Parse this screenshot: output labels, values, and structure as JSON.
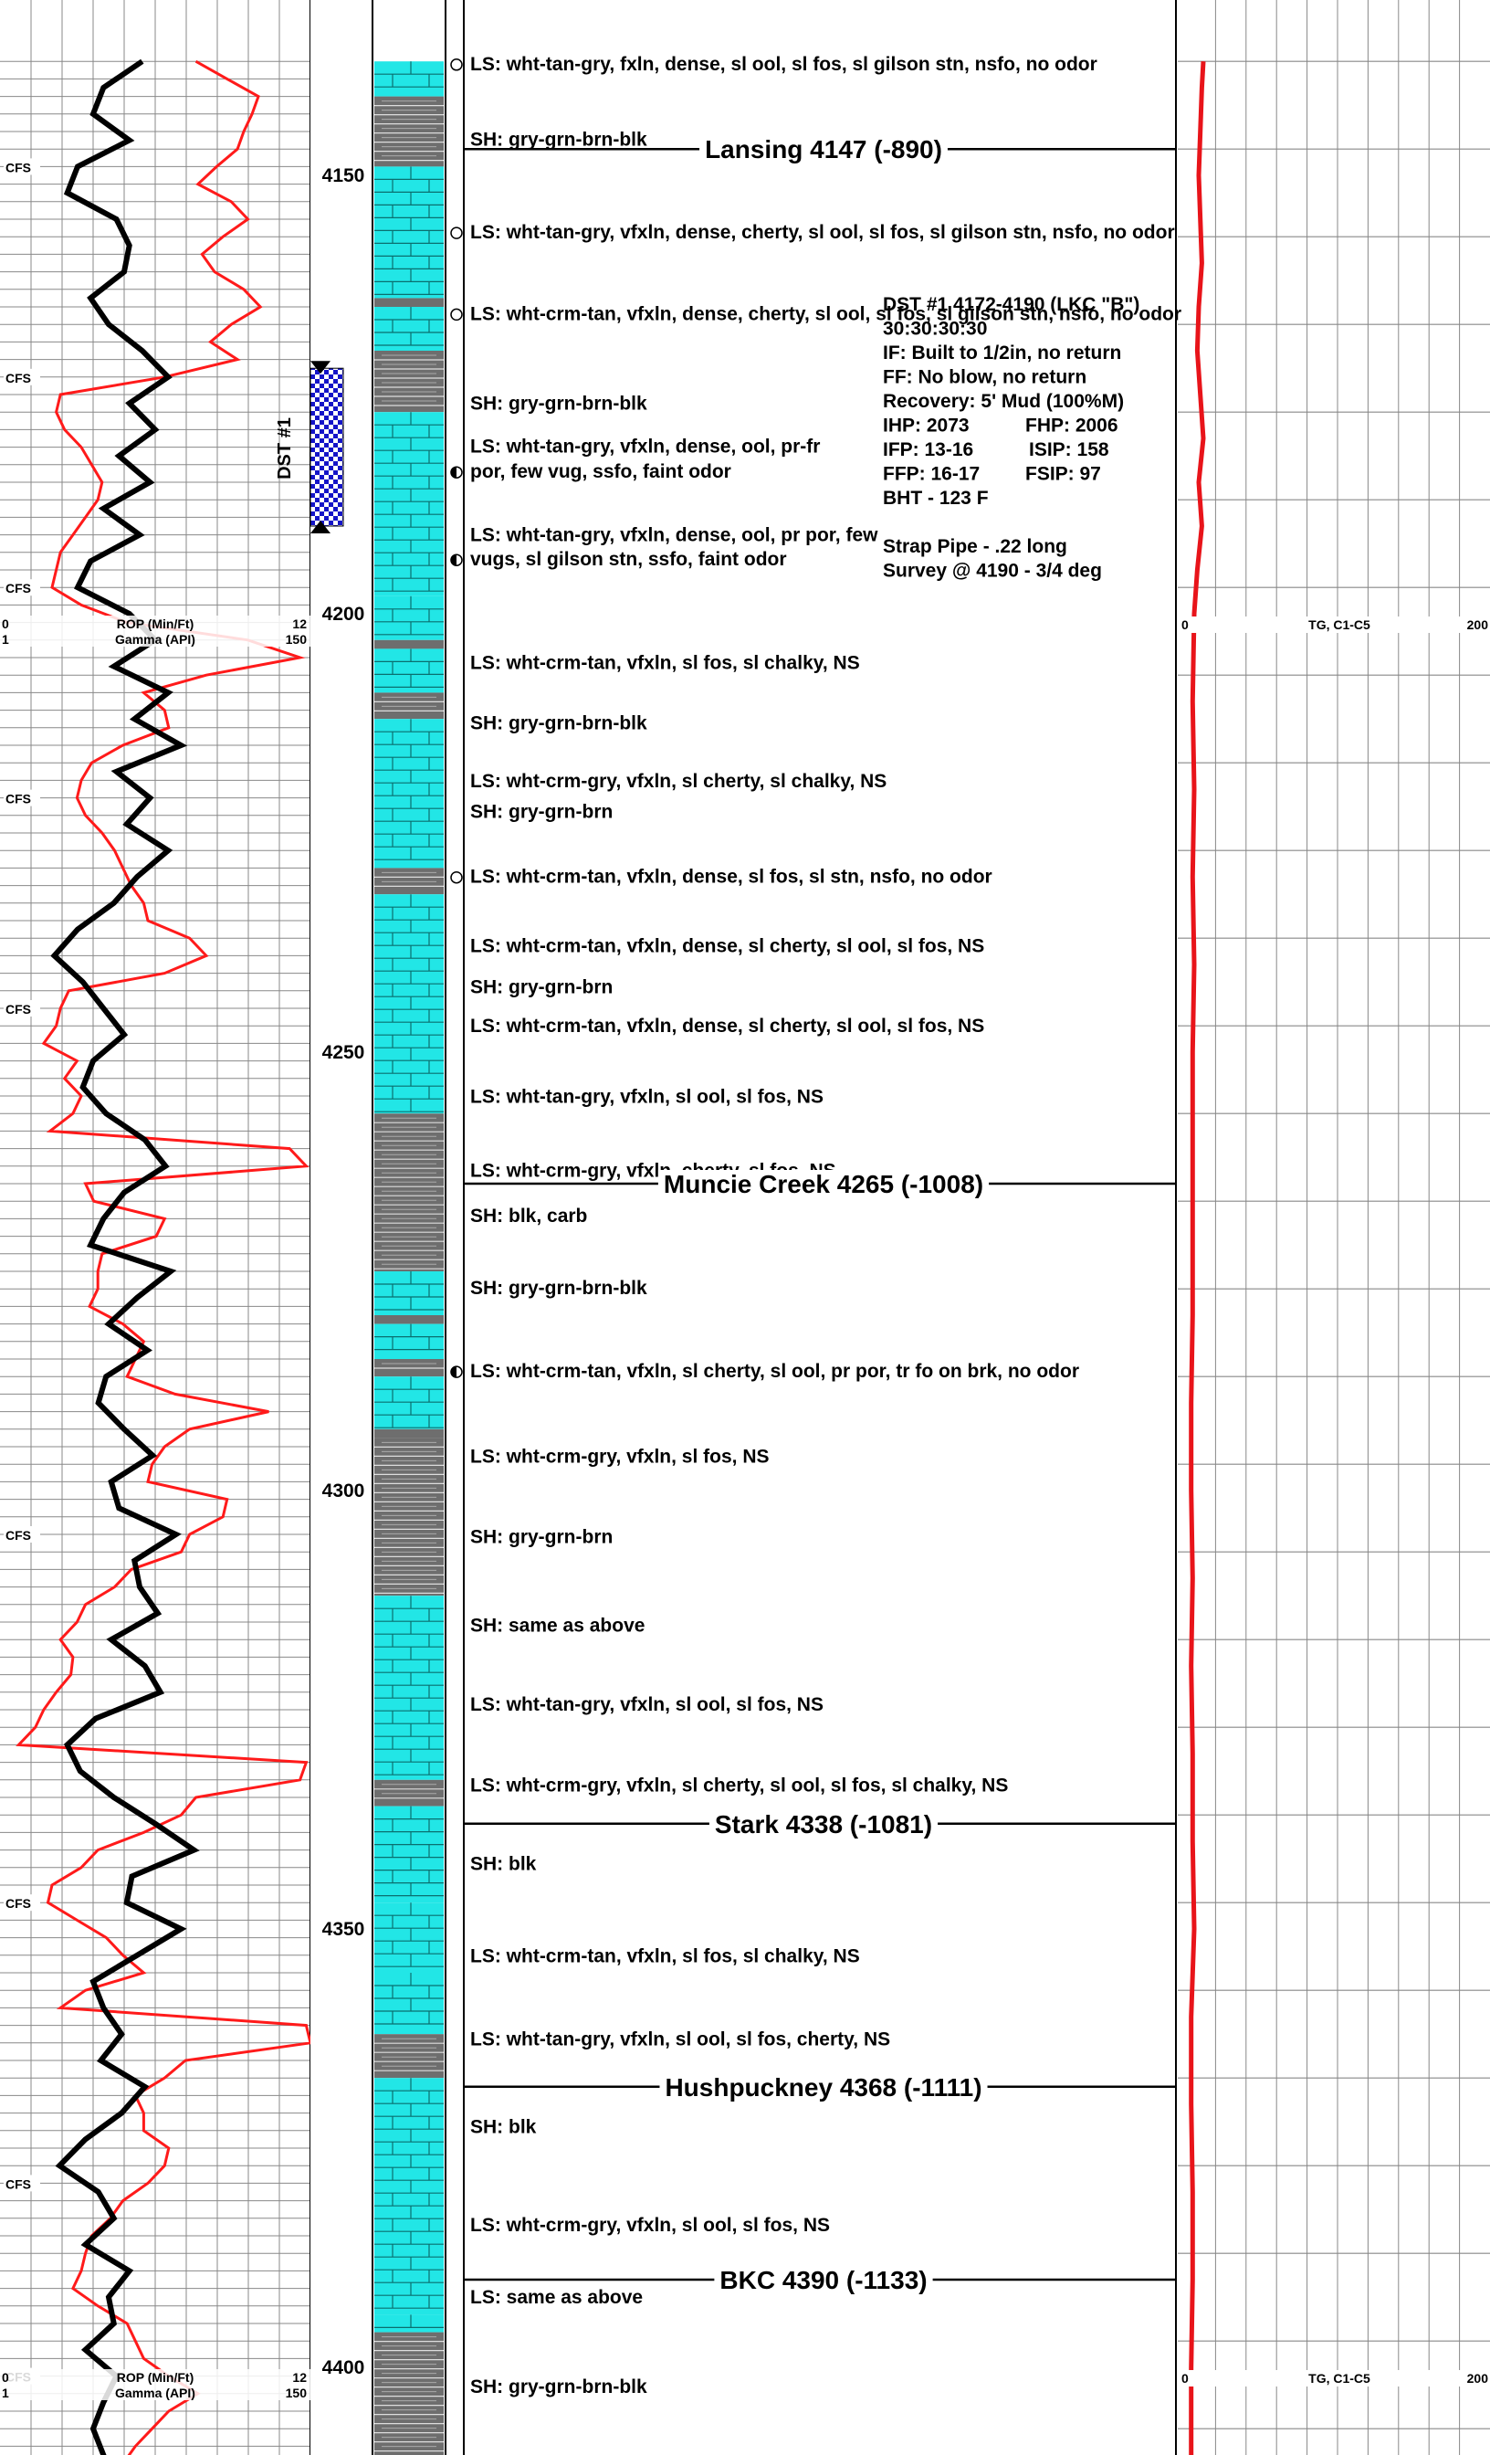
{
  "depth_range": [
    4137,
    4417
  ],
  "depth_labels": [
    "4150",
    "4200",
    "4250",
    "4300",
    "4350",
    "4400"
  ],
  "cfs_label": "CFS",
  "cfs_depths": [
    4149,
    4173,
    4197,
    4221,
    4245,
    4305,
    4347,
    4379,
    4401
  ],
  "track1_headers": [
    {
      "depth": 4200,
      "left_top": "0",
      "right_top": "12",
      "title_top": "ROP (Min/Ft)",
      "left_bot": "1",
      "right_bot": "150",
      "title_bot": "Gamma (API)"
    },
    {
      "depth": 4400,
      "left_top": "0",
      "right_top": "12",
      "title_top": "ROP (Min/Ft)",
      "left_bot": "1",
      "right_bot": "150",
      "title_bot": "Gamma (API)"
    }
  ],
  "track3_headers": [
    {
      "depth": 4200,
      "left": "0",
      "title": "TG, C1-C5",
      "right": "200"
    },
    {
      "depth": 4400,
      "left": "0",
      "title": "TG, C1-C5",
      "right": "200"
    }
  ],
  "dst": {
    "label": "DST #1",
    "top_depth": 4172,
    "bottom_depth": 4190
  },
  "colors": {
    "limestone": "#22e6e6",
    "shale": "#6e6e6e",
    "gamma": "#ff1a1a",
    "rop": "#000000",
    "gas": "#e8141a"
  },
  "lithology": [
    [
      4137,
      4141,
      "LS"
    ],
    [
      4141,
      4149,
      "SH"
    ],
    [
      4149,
      4164,
      "LS"
    ],
    [
      4164,
      4165,
      "SH"
    ],
    [
      4165,
      4170,
      "LS"
    ],
    [
      4170,
      4177,
      "SH"
    ],
    [
      4177,
      4198,
      "LS"
    ],
    [
      4198,
      4203,
      "LS"
    ],
    [
      4203,
      4204,
      "SH"
    ],
    [
      4204,
      4209,
      "LS"
    ],
    [
      4209,
      4212,
      "SH"
    ],
    [
      4212,
      4229,
      "LS"
    ],
    [
      4229,
      4232,
      "SH"
    ],
    [
      4232,
      4257,
      "LS"
    ],
    [
      4257,
      4275,
      "SH"
    ],
    [
      4275,
      4280,
      "LS"
    ],
    [
      4280,
      4281,
      "SH"
    ],
    [
      4281,
      4285,
      "LS"
    ],
    [
      4285,
      4287,
      "SH"
    ],
    [
      4287,
      4293,
      "LS"
    ],
    [
      4293,
      4294,
      "SH"
    ],
    [
      4294,
      4312,
      "SH"
    ],
    [
      4312,
      4333,
      "LS"
    ],
    [
      4333,
      4336,
      "SH"
    ],
    [
      4336,
      4347,
      "LS"
    ],
    [
      4347,
      4355,
      "LS"
    ],
    [
      4355,
      4362,
      "LS"
    ],
    [
      4362,
      4367,
      "SH"
    ],
    [
      4367,
      4394,
      "LS"
    ],
    [
      4394,
      4396,
      "LS"
    ],
    [
      4396,
      4417,
      "SH"
    ]
  ],
  "formations": [
    {
      "depth": 4147,
      "label": "Lansing 4147 (-890)"
    },
    {
      "depth": 4265,
      "label": "Muncie Creek 4265 (-1008)"
    },
    {
      "depth": 4338,
      "label": "Stark 4338 (-1081)"
    },
    {
      "depth": 4368,
      "label": "Hushpuckney 4368 (-1111)"
    },
    {
      "depth": 4390,
      "label": "BKC 4390 (-1133)"
    }
  ],
  "descriptions": [
    {
      "depth": 4138,
      "text": "LS: wht-tan-gry, fxln, dense, sl ool, sl fos, sl gilson stn, nsfo, no odor",
      "show": "empty"
    },
    {
      "depth": 4146.6,
      "text": "SH: gry-grn-brn-blk"
    },
    {
      "depth": 4157.2,
      "text": "LS: wht-tan-gry, vfxln, dense, cherty, sl ool, sl fos, sl gilson stn, nsfo, no odor",
      "show": "empty"
    },
    {
      "depth": 4166.5,
      "text": "LS: wht-crm-tan, vfxln, dense, cherty, sl ool, sl fos, sl gilson stn, nsfo, no odor",
      "show": "empty"
    },
    {
      "depth": 4176.7,
      "text": "SH: gry-grn-brn-blk"
    },
    {
      "depth": 4181.6,
      "text": "LS: wht-tan-gry, vfxln, dense, ool, pr-fr"
    },
    {
      "depth": 4184.5,
      "text": "por, few vug, ssfo, faint odor",
      "show": "half"
    },
    {
      "depth": 4191.7,
      "text": "LS: wht-tan-gry, vfxln, dense, ool, pr por, few"
    },
    {
      "depth": 4194.5,
      "text": "vugs, sl gilson stn, ssfo, faint odor",
      "show": "half"
    },
    {
      "depth": 4206.3,
      "text": "LS: wht-crm-tan, vfxln, sl fos, sl chalky, NS"
    },
    {
      "depth": 4213.2,
      "text": "SH: gry-grn-brn-blk"
    },
    {
      "depth": 4219.8,
      "text": "LS: wht-crm-gry, vfxln, sl cherty, sl chalky, NS"
    },
    {
      "depth": 4223.3,
      "text": "SH: gry-grn-brn"
    },
    {
      "depth": 4230.7,
      "text": "LS: wht-crm-tan, vfxln, dense, sl fos, sl stn, nsfo, no odor",
      "show": "empty"
    },
    {
      "depth": 4238.6,
      "text": "LS: wht-crm-tan, vfxln, dense, sl cherty, sl ool, sl fos, NS"
    },
    {
      "depth": 4243.3,
      "text": "SH: gry-grn-brn"
    },
    {
      "depth": 4247.7,
      "text": "LS: wht-crm-tan, vfxln, dense, sl cherty, sl ool, sl fos, NS"
    },
    {
      "depth": 4255.8,
      "text": "LS: wht-tan-gry, vfxln, sl ool, sl fos, NS"
    },
    {
      "depth": 4264.2,
      "text": "LS: wht-crm-gry, vfxln, cherty, sl fos, NS"
    },
    {
      "depth": 4269.4,
      "text": "SH: blk, carb"
    },
    {
      "depth": 4277.6,
      "text": "SH: gry-grn-brn-blk"
    },
    {
      "depth": 4287.1,
      "text": "LS: wht-crm-tan, vfxln, sl cherty, sl ool, pr por, tr fo on brk, no odor",
      "show": "half"
    },
    {
      "depth": 4296.8,
      "text": "LS: wht-crm-gry, vfxln, sl fos, NS"
    },
    {
      "depth": 4306.0,
      "text": "SH: gry-grn-brn"
    },
    {
      "depth": 4316.1,
      "text": "SH: same as above"
    },
    {
      "depth": 4325.1,
      "text": "LS: wht-tan-gry, vfxln, sl ool, sl fos, NS"
    },
    {
      "depth": 4334.3,
      "text": "LS: wht-crm-gry, vfxln, sl cherty, sl ool, sl fos, sl chalky, NS"
    },
    {
      "depth": 4343.3,
      "text": "SH: blk"
    },
    {
      "depth": 4353.8,
      "text": "LS: wht-crm-tan, vfxln, sl fos, sl chalky, NS"
    },
    {
      "depth": 4363.3,
      "text": "LS: wht-tan-gry, vfxln, sl ool, sl fos, cherty, NS"
    },
    {
      "depth": 4373.3,
      "text": "SH: blk"
    },
    {
      "depth": 4384.5,
      "text": "LS: wht-crm-gry, vfxln, sl ool, sl fos, NS"
    },
    {
      "depth": 4392.7,
      "text": "LS: same as above"
    },
    {
      "depth": 4402.9,
      "text": "SH: gry-grn-brn-blk"
    }
  ],
  "dst_box": [
    "DST #1 4172-4190 (LKC \"B\")",
    "30:30:30:30",
    "IF: Built to 1/2in, no return",
    "FF: No blow, no return",
    "Recovery: 5' Mud (100%M)",
    [
      "IHP: 2073",
      "FHP: 2006"
    ],
    [
      "IFP: 13-16",
      "ISIP: 158"
    ],
    [
      "FFP: 16-17",
      "FSIP: 97"
    ],
    "BHT - 123 F",
    "",
    "Strap Pipe - .22 long",
    "Survey @ 4190 - 3/4 deg"
  ],
  "chart_data": {
    "type": "line",
    "title": "",
    "y_axis": "depth (ft)",
    "ylim": [
      4137,
      4417
    ],
    "series": [
      {
        "name": "ROP (Min/Ft)",
        "xlim": [
          0,
          12
        ],
        "depths": [
          4137,
          4140,
          4143,
          4146,
          4149,
          4152,
          4155,
          4158,
          4161,
          4164,
          4167,
          4170,
          4173,
          4176,
          4179,
          4182,
          4185,
          4188,
          4191,
          4194,
          4197,
          4200,
          4203,
          4206,
          4209,
          4212,
          4215,
          4218,
          4221,
          4224,
          4227,
          4230,
          4233,
          4236,
          4239,
          4242,
          4245,
          4248,
          4251,
          4254,
          4257,
          4260,
          4263,
          4266,
          4269,
          4272,
          4275,
          4278,
          4281,
          4284,
          4287,
          4290,
          4293,
          4296,
          4299,
          4302,
          4305,
          4308,
          4311,
          4314,
          4317,
          4320,
          4323,
          4326,
          4329,
          4332,
          4335,
          4338,
          4341,
          4344,
          4347,
          4350,
          4353,
          4356,
          4359,
          4362,
          4365,
          4368,
          4371,
          4374,
          4377,
          4380,
          4383,
          4386,
          4389,
          4392,
          4395,
          4398,
          4401,
          4404,
          4407,
          4410,
          4413,
          4416
        ],
        "values": [
          5.5,
          4.0,
          3.6,
          5.0,
          3.0,
          2.6,
          4.5,
          5.0,
          4.8,
          3.5,
          4.2,
          5.5,
          6.5,
          5.0,
          6.0,
          4.6,
          5.8,
          4.0,
          5.4,
          3.5,
          3.0,
          5.0,
          6.0,
          4.4,
          6.5,
          5.2,
          7.0,
          4.5,
          5.8,
          4.9,
          6.5,
          5.3,
          4.4,
          3.0,
          2.1,
          3.2,
          4.0,
          4.8,
          3.6,
          3.2,
          4.1,
          5.6,
          6.4,
          4.8,
          4.0,
          3.5,
          6.6,
          5.3,
          4.2,
          5.7,
          4.1,
          3.8,
          4.8,
          5.9,
          4.3,
          4.6,
          6.8,
          5.2,
          5.4,
          6.1,
          4.3,
          5.6,
          6.2,
          3.7,
          2.6,
          3.1,
          4.4,
          6.0,
          7.5,
          5.1,
          4.9,
          7.0,
          5.3,
          3.6,
          4.0,
          4.7,
          3.9,
          5.6,
          4.7,
          3.3,
          2.3,
          3.8,
          4.4,
          3.3,
          5.0,
          4.2,
          4.4,
          3.3,
          4.5,
          4.0,
          3.6,
          4.0,
          4.4,
          4.7
        ]
      },
      {
        "name": "Gamma (API)",
        "xlim": [
          1,
          150
        ],
        "depths": [
          4137,
          4139,
          4141,
          4143,
          4145,
          4147,
          4149,
          4151,
          4153,
          4155,
          4157,
          4159,
          4161,
          4163,
          4165,
          4167,
          4169,
          4171,
          4173,
          4175,
          4177,
          4179,
          4181,
          4183,
          4185,
          4187,
          4189,
          4191,
          4193,
          4195,
          4197,
          4199,
          4201,
          4203,
          4205,
          4207,
          4209,
          4211,
          4213,
          4215,
          4217,
          4219,
          4221,
          4223,
          4225,
          4227,
          4229,
          4231,
          4233,
          4235,
          4237,
          4239,
          4241,
          4243,
          4245,
          4247,
          4249,
          4251,
          4253,
          4255,
          4257,
          4259,
          4261,
          4263,
          4265,
          4267,
          4269,
          4271,
          4273,
          4275,
          4277,
          4279,
          4281,
          4283,
          4285,
          4287,
          4289,
          4291,
          4293,
          4295,
          4297,
          4299,
          4301,
          4303,
          4305,
          4307,
          4309,
          4311,
          4313,
          4315,
          4317,
          4319,
          4321,
          4323,
          4325,
          4327,
          4329,
          4331,
          4333,
          4335,
          4337,
          4339,
          4341,
          4343,
          4345,
          4347,
          4349,
          4351,
          4353,
          4355,
          4357,
          4359,
          4361,
          4363,
          4365,
          4367,
          4369,
          4371,
          4373,
          4375,
          4377,
          4379,
          4381,
          4383,
          4385,
          4387,
          4389,
          4391,
          4393,
          4395,
          4397,
          4399,
          4401,
          4403,
          4405,
          4407,
          4409,
          4411,
          4413,
          4415,
          4417
        ],
        "values": [
          95,
          110,
          125,
          122,
          118,
          115,
          105,
          96,
          112,
          120,
          108,
          98,
          104,
          118,
          126,
          112,
          102,
          115,
          80,
          30,
          28,
          32,
          40,
          45,
          50,
          48,
          42,
          36,
          30,
          28,
          26,
          40,
          62,
          120,
          145,
          100,
          70,
          80,
          82,
          60,
          45,
          40,
          38,
          42,
          50,
          56,
          60,
          64,
          70,
          72,
          92,
          100,
          80,
          34,
          30,
          28,
          22,
          38,
          32,
          40,
          36,
          25,
          140,
          148,
          42,
          46,
          80,
          76,
          50,
          48,
          48,
          44,
          60,
          70,
          66,
          62,
          85,
          130,
          92,
          80,
          74,
          72,
          110,
          108,
          92,
          88,
          64,
          56,
          42,
          38,
          30,
          36,
          35,
          28,
          22,
          18,
          10,
          148,
          145,
          95,
          88,
          70,
          48,
          40,
          26,
          24,
          38,
          52,
          60,
          70,
          42,
          30,
          148,
          150,
          90,
          80,
          66,
          70,
          70,
          82,
          80,
          72,
          60,
          54,
          45,
          42,
          40,
          36,
          48,
          62,
          66,
          70,
          82,
          96,
          82,
          74,
          66,
          60,
          58,
          55,
          50
        ]
      },
      {
        "name": "TG, C1-C5",
        "xlim": [
          0,
          200
        ],
        "depths": [
          4137,
          4140,
          4145,
          4150,
          4155,
          4160,
          4165,
          4170,
          4175,
          4180,
          4185,
          4190,
          4195,
          4200,
          4210,
          4220,
          4230,
          4240,
          4250,
          4260,
          4270,
          4280,
          4290,
          4300,
          4310,
          4320,
          4330,
          4340,
          4350,
          4360,
          4370,
          4380,
          4390,
          4400,
          4410,
          4417
        ],
        "values": [
          12,
          11,
          10,
          9,
          10,
          11,
          9,
          8,
          10,
          12,
          9,
          11,
          8,
          6,
          5,
          6,
          5,
          6,
          5,
          5,
          5,
          5,
          4,
          4,
          5,
          4,
          5,
          5,
          6,
          4,
          4,
          5,
          5,
          4,
          4,
          4
        ]
      }
    ]
  }
}
